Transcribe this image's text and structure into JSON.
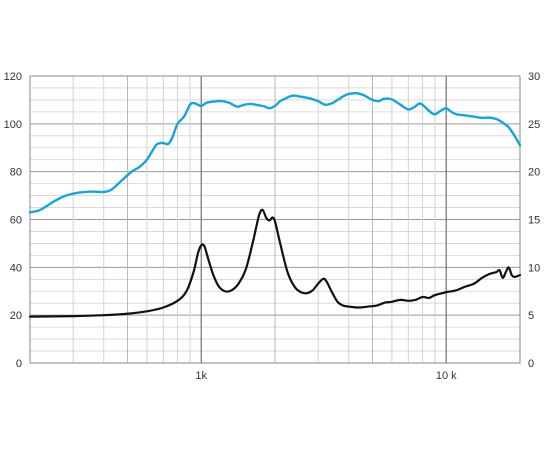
{
  "chart_data": {
    "type": "line",
    "x_scale": "log",
    "xlim": [
      200,
      20000
    ],
    "x_tick_labels": [
      {
        "value": 1000,
        "label": "1k"
      },
      {
        "value": 10000,
        "label": "10 k"
      }
    ],
    "y_left_lim": [
      0,
      120
    ],
    "y_left_ticks": [
      0,
      20,
      40,
      60,
      80,
      100,
      120
    ],
    "y_right_lim": [
      0,
      30
    ],
    "y_right_ticks": [
      0,
      5,
      10,
      15,
      20,
      25,
      30
    ],
    "grid": true,
    "series": [
      {
        "axis": "left",
        "color": "#1aa3d6",
        "points": [
          [
            200,
            63
          ],
          [
            220,
            64
          ],
          [
            250,
            67.5
          ],
          [
            280,
            70
          ],
          [
            320,
            71.3
          ],
          [
            360,
            71.7
          ],
          [
            400,
            71.5
          ],
          [
            430,
            72.5
          ],
          [
            470,
            76
          ],
          [
            520,
            80
          ],
          [
            560,
            82
          ],
          [
            600,
            85
          ],
          [
            630,
            88.5
          ],
          [
            660,
            91.5
          ],
          [
            700,
            92
          ],
          [
            730,
            91.5
          ],
          [
            760,
            94
          ],
          [
            800,
            100
          ],
          [
            850,
            103
          ],
          [
            900,
            108
          ],
          [
            930,
            108.7
          ],
          [
            960,
            108.2
          ],
          [
            1000,
            107.5
          ],
          [
            1050,
            108.8
          ],
          [
            1100,
            109.2
          ],
          [
            1200,
            109.5
          ],
          [
            1300,
            108.8
          ],
          [
            1400,
            107.2
          ],
          [
            1500,
            108
          ],
          [
            1600,
            108.3
          ],
          [
            1700,
            107.8
          ],
          [
            1800,
            107.4
          ],
          [
            1900,
            106.5
          ],
          [
            2000,
            107.5
          ],
          [
            2100,
            109.5
          ],
          [
            2200,
            110.5
          ],
          [
            2300,
            111.5
          ],
          [
            2400,
            111.8
          ],
          [
            2500,
            111.5
          ],
          [
            2600,
            111.2
          ],
          [
            2800,
            110.5
          ],
          [
            3000,
            109.5
          ],
          [
            3200,
            108
          ],
          [
            3400,
            108.5
          ],
          [
            3600,
            110
          ],
          [
            3800,
            111.5
          ],
          [
            4000,
            112.5
          ],
          [
            4300,
            112.8
          ],
          [
            4600,
            112
          ],
          [
            5000,
            110
          ],
          [
            5300,
            109.5
          ],
          [
            5600,
            110.5
          ],
          [
            6000,
            110.2
          ],
          [
            6500,
            108
          ],
          [
            7000,
            106
          ],
          [
            7400,
            107
          ],
          [
            7800,
            108.5
          ],
          [
            8200,
            107
          ],
          [
            8600,
            105
          ],
          [
            9000,
            104
          ],
          [
            9500,
            105.5
          ],
          [
            10000,
            106.5
          ],
          [
            10500,
            105
          ],
          [
            11000,
            104
          ],
          [
            12000,
            103.5
          ],
          [
            13000,
            103
          ],
          [
            14000,
            102.5
          ],
          [
            15000,
            102.6
          ],
          [
            16000,
            102
          ],
          [
            17000,
            100.5
          ],
          [
            18000,
            98.5
          ],
          [
            19000,
            95
          ],
          [
            20000,
            91
          ]
        ]
      },
      {
        "axis": "right",
        "color": "#111111",
        "points": [
          [
            200,
            4.85
          ],
          [
            300,
            4.9
          ],
          [
            400,
            5.0
          ],
          [
            500,
            5.15
          ],
          [
            600,
            5.4
          ],
          [
            700,
            5.8
          ],
          [
            800,
            6.5
          ],
          [
            870,
            7.5
          ],
          [
            930,
            9.5
          ],
          [
            970,
            11.5
          ],
          [
            1000,
            12.3
          ],
          [
            1030,
            12.2
          ],
          [
            1070,
            10.8
          ],
          [
            1120,
            9.2
          ],
          [
            1180,
            8.0
          ],
          [
            1250,
            7.5
          ],
          [
            1330,
            7.6
          ],
          [
            1420,
            8.3
          ],
          [
            1520,
            9.8
          ],
          [
            1620,
            12.5
          ],
          [
            1720,
            15.4
          ],
          [
            1780,
            16.0
          ],
          [
            1840,
            15.2
          ],
          [
            1900,
            14.9
          ],
          [
            1950,
            15.2
          ],
          [
            2000,
            14.8
          ],
          [
            2100,
            12.5
          ],
          [
            2250,
            9.5
          ],
          [
            2400,
            8.0
          ],
          [
            2550,
            7.4
          ],
          [
            2700,
            7.3
          ],
          [
            2850,
            7.6
          ],
          [
            3000,
            8.3
          ],
          [
            3150,
            8.8
          ],
          [
            3250,
            8.5
          ],
          [
            3400,
            7.5
          ],
          [
            3600,
            6.4
          ],
          [
            3800,
            6.0
          ],
          [
            4000,
            5.9
          ],
          [
            4400,
            5.8
          ],
          [
            4800,
            5.9
          ],
          [
            5200,
            6.0
          ],
          [
            5600,
            6.3
          ],
          [
            6000,
            6.4
          ],
          [
            6500,
            6.6
          ],
          [
            7000,
            6.5
          ],
          [
            7500,
            6.6
          ],
          [
            8000,
            6.9
          ],
          [
            8500,
            6.8
          ],
          [
            9000,
            7.1
          ],
          [
            10000,
            7.4
          ],
          [
            11000,
            7.6
          ],
          [
            12000,
            8.0
          ],
          [
            13000,
            8.3
          ],
          [
            14000,
            8.9
          ],
          [
            15000,
            9.3
          ],
          [
            16000,
            9.5
          ],
          [
            16500,
            9.7
          ],
          [
            17000,
            8.9
          ],
          [
            17500,
            9.5
          ],
          [
            18000,
            10.0
          ],
          [
            18500,
            9.2
          ],
          [
            19000,
            9.0
          ],
          [
            20000,
            9.2
          ]
        ]
      }
    ]
  }
}
